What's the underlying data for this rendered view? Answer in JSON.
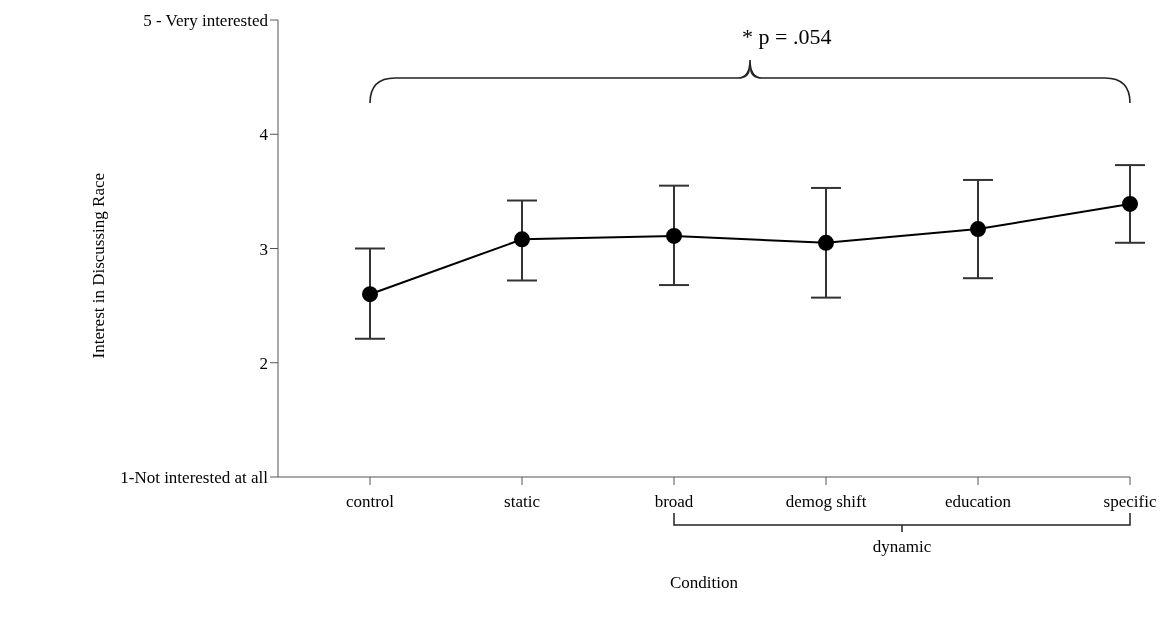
{
  "chart_data": {
    "type": "line",
    "categories": [
      "control",
      "static",
      "broad",
      "demog shift",
      "education",
      "specific"
    ],
    "series": [
      {
        "color": "#000000",
        "values": [
          2.6,
          3.08,
          3.11,
          3.05,
          3.17,
          3.39
        ],
        "errors": [
          [
            2.21,
            3.0
          ],
          [
            2.72,
            3.42
          ],
          [
            2.68,
            3.55
          ],
          [
            2.57,
            3.53
          ],
          [
            2.74,
            3.6
          ],
          [
            3.05,
            3.73
          ]
        ]
      }
    ],
    "ylim": [
      1,
      5
    ],
    "yticks": [
      {
        "value": 1,
        "label": "1-Not interested at all"
      },
      2,
      3,
      4,
      {
        "value": 5,
        "label": "5 - Very interested"
      }
    ],
    "xlabel": "Condition",
    "ylabel": "Interest in Discussing Race",
    "annotations": [
      "* p = .054",
      "dynamic"
    ],
    "marker": "circle",
    "line_style": "solid",
    "grid": false,
    "legend": false
  }
}
